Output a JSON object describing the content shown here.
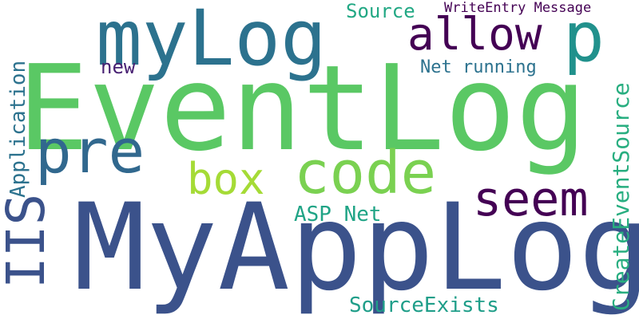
{
  "words": [
    {
      "key": "eventlog",
      "text": "EventLog",
      "color": "#5ac864"
    },
    {
      "key": "myapplog",
      "text": "MyAppLog",
      "color": "#3b528b"
    },
    {
      "key": "mylog",
      "text": "myLog",
      "color": "#2c728e"
    },
    {
      "key": "pre",
      "text": "pre",
      "color": "#31688e"
    },
    {
      "key": "code",
      "text": "code",
      "color": "#7ad151"
    },
    {
      "key": "allow",
      "text": "allow",
      "color": "#440154"
    },
    {
      "key": "p",
      "text": "p",
      "color": "#21918c"
    },
    {
      "key": "seem",
      "text": "seem",
      "color": "#440154"
    },
    {
      "key": "box",
      "text": "box",
      "color": "#a5db36"
    },
    {
      "key": "iis",
      "text": "IIS",
      "color": "#3b528b"
    },
    {
      "key": "application",
      "text": "Application",
      "color": "#2c728e"
    },
    {
      "key": "createeventsource",
      "text": "CreateEventSource",
      "color": "#28ae80"
    },
    {
      "key": "sourceexists",
      "text": "SourceExists",
      "color": "#1f9e89"
    },
    {
      "key": "aspnet",
      "text": "ASP Net",
      "color": "#20a486"
    },
    {
      "key": "source",
      "text": "Source",
      "color": "#22a884"
    },
    {
      "key": "writeentry",
      "text": "WriteEntry Message",
      "color": "#440154"
    },
    {
      "key": "netrunning",
      "text": "Net running",
      "color": "#2c728e"
    },
    {
      "key": "new",
      "text": "new",
      "color": "#482173"
    }
  ]
}
